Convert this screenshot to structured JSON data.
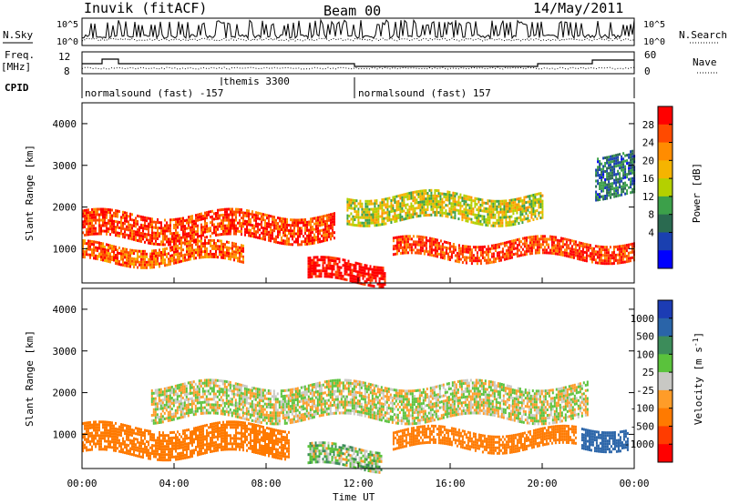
{
  "header": {
    "station": "Inuvik (fitACF)",
    "beam": "Beam 00",
    "date": "14/May/2011"
  },
  "top_panels": {
    "nsky_label": "N.Sky",
    "nsearch_label": "N.Search",
    "noise_ticks": [
      "10^5",
      "10^0"
    ],
    "freq_label": "Freq.",
    "freq_unit": "[MHz]",
    "freq_ticks": [
      "12",
      "8"
    ],
    "nave_label": "Nave",
    "nave_ticks": [
      "60",
      "0"
    ],
    "cpid_label": "CPID",
    "cpid_segments": [
      {
        "label": "normalsound (fast) -157",
        "start_hour": 0,
        "end_hour": 12
      },
      {
        "label": "themis 3300",
        "start_hour": 6.1,
        "end_hour": 6.1
      },
      {
        "label": "normalsound (fast) 157",
        "start_hour": 12,
        "end_hour": 24
      }
    ]
  },
  "time_axis": {
    "title": "Time UT",
    "ticks": [
      "00:00",
      "04:00",
      "08:00",
      "12:00",
      "16:00",
      "20:00",
      "00:00"
    ]
  },
  "power_panel": {
    "ylabel": "Slant Range [km]",
    "yticks": [
      "4000",
      "3000",
      "2000",
      "1000"
    ],
    "colorbar_title": "Power [dB]",
    "colorbar_labels": [
      "28",
      "24",
      "20",
      "16",
      "12",
      "8",
      "4"
    ],
    "colors": [
      "#ff0000",
      "#ff4a00",
      "#ff8c00",
      "#f5b400",
      "#b4d000",
      "#3ca04a",
      "#2a6a50",
      "#1a40b0",
      "#0000ff"
    ]
  },
  "velocity_panel": {
    "ylabel": "Slant Range [km]",
    "yticks": [
      "4000",
      "3000",
      "2000",
      "1000"
    ],
    "colorbar_title": "Velocity [m s",
    "colorbar_title_sup": "-1",
    "colorbar_close": "]",
    "colorbar_labels": [
      "1000",
      "500",
      "100",
      "25",
      "-25",
      "-100",
      "-500",
      "-1000"
    ],
    "colors": [
      "#1c3cb4",
      "#2a64a8",
      "#3c8c5a",
      "#5ac23c",
      "#c8c8c4",
      "#ff9c28",
      "#ff7a00",
      "#ff3c00",
      "#ff0000"
    ]
  },
  "chart_data": {
    "type": "heatmap",
    "title": "Inuvik (fitACF) Beam 00 14/May/2011",
    "xlabel": "Time UT",
    "ylabel": "Slant Range [km]",
    "xlim_hours": [
      0,
      24
    ],
    "ylim_km": [
      180,
      4500
    ],
    "series": [
      {
        "name": "Power [dB]",
        "bands": [
          {
            "start_hour": 0.0,
            "end_hour": 11.0,
            "range_km": [
              1250,
              1850
            ],
            "power_db": 26
          },
          {
            "start_hour": 0.0,
            "end_hour": 7.0,
            "range_km": [
              700,
              1100
            ],
            "power_db": 24
          },
          {
            "start_hour": 9.8,
            "end_hour": 13.2,
            "range_km": [
              200,
              700
            ],
            "power_db": 30
          },
          {
            "start_hour": 11.5,
            "end_hour": 20.0,
            "range_km": [
              1700,
              2300
            ],
            "power_db": 16
          },
          {
            "start_hour": 13.5,
            "end_hour": 24.0,
            "range_km": [
              800,
              1200
            ],
            "power_db": 26
          },
          {
            "start_hour": 22.3,
            "end_hour": 24.0,
            "range_km": [
              2300,
              3300
            ],
            "power_db": 8
          }
        ]
      },
      {
        "name": "Velocity [m s-1]",
        "bands": [
          {
            "start_hour": 0.0,
            "end_hour": 9.0,
            "range_km": [
              500,
              1200
            ],
            "velocity_ms": -300
          },
          {
            "start_hour": 3.0,
            "end_hour": 22.0,
            "range_km": [
              1400,
              2200
            ],
            "velocity_ms": 0
          },
          {
            "start_hour": 9.8,
            "end_hour": 13.0,
            "range_km": [
              200,
              700
            ],
            "velocity_ms": 50
          },
          {
            "start_hour": 13.5,
            "end_hour": 21.5,
            "range_km": [
              700,
              1100
            ],
            "velocity_ms": -200
          },
          {
            "start_hour": 21.7,
            "end_hour": 23.7,
            "range_km": [
              700,
              1200
            ],
            "velocity_ms": 700
          }
        ]
      }
    ]
  }
}
